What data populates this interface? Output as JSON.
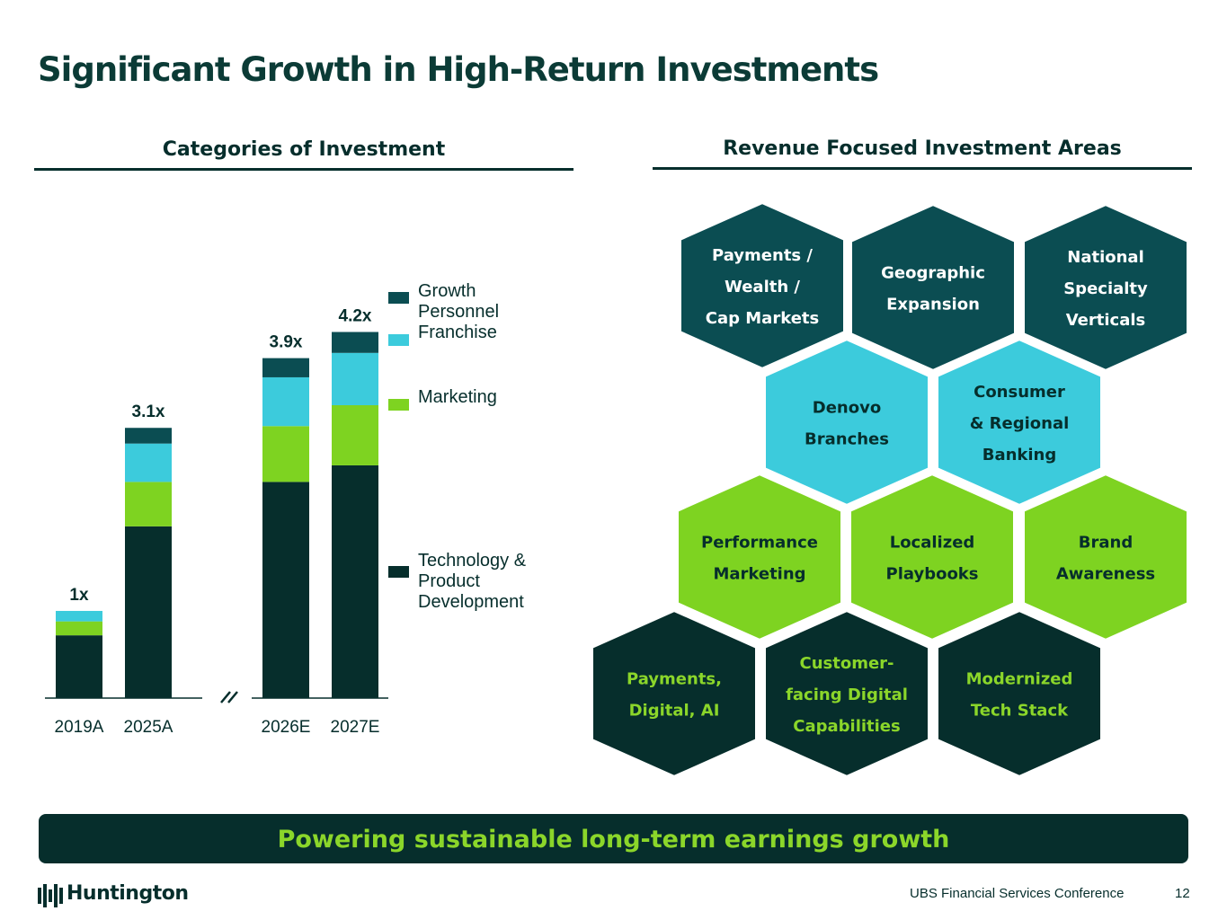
{
  "title": "Significant Growth in High-Return Investments",
  "left_heading": "Categories of Investment",
  "right_heading": "Revenue Focused Investment Areas",
  "chart_data": {
    "type": "stacked_bar",
    "categories": [
      "2019A",
      "2025A",
      "2026E",
      "2027E"
    ],
    "series": [
      {
        "name": "Technology & Product Development",
        "color": "#062e2c",
        "values": [
          0.72,
          1.97,
          2.48,
          2.67
        ]
      },
      {
        "name": "Marketing",
        "color": "#7ed321",
        "values": [
          0.16,
          0.51,
          0.64,
          0.69
        ]
      },
      {
        "name": "Franchise",
        "color": "#3ccbdc",
        "values": [
          0.12,
          0.44,
          0.56,
          0.6
        ]
      },
      {
        "name": "Growth Personnel",
        "color": "#0b4d52",
        "values": [
          0,
          0.18,
          0.22,
          0.24
        ]
      }
    ],
    "totals": [
      1,
      3.1,
      3.9,
      4.2
    ],
    "total_labels": [
      "1x",
      "3.1x",
      "3.9x",
      "4.2x"
    ],
    "ylim": [
      0,
      4.7
    ]
  },
  "hexagons": [
    {
      "lines": [
        "Payments /",
        "Wealth /",
        "Cap Markets"
      ],
      "color": "#0b4d52",
      "text_color": "#ffffff"
    },
    {
      "lines": [
        "Geographic",
        "Expansion"
      ],
      "color": "#0b4d52",
      "text_color": "#ffffff"
    },
    {
      "lines": [
        "National",
        "Specialty",
        "Verticals"
      ],
      "color": "#0b4d52",
      "text_color": "#ffffff"
    },
    {
      "lines": [
        "Denovo",
        "Branches"
      ],
      "color": "#3ccbdc",
      "text_color": "#062e2c"
    },
    {
      "lines": [
        "Consumer",
        "& Regional",
        "Banking"
      ],
      "color": "#3ccbdc",
      "text_color": "#062e2c"
    },
    {
      "lines": [
        "Performance",
        "Marketing"
      ],
      "color": "#7ed321",
      "text_color": "#062e2c"
    },
    {
      "lines": [
        "Localized",
        "Playbooks"
      ],
      "color": "#7ed321",
      "text_color": "#062e2c"
    },
    {
      "lines": [
        "Brand",
        "Awareness"
      ],
      "color": "#7ed321",
      "text_color": "#062e2c"
    },
    {
      "lines": [
        "Payments,",
        "Digital, AI"
      ],
      "color": "#062e2c",
      "text_color": "#8bd62a"
    },
    {
      "lines": [
        "Customer-",
        "facing Digital",
        "Capabilities"
      ],
      "color": "#062e2c",
      "text_color": "#8bd62a"
    },
    {
      "lines": [
        "Modernized",
        "Tech Stack"
      ],
      "color": "#062e2c",
      "text_color": "#8bd62a"
    }
  ],
  "banner": "Powering sustainable long-term earnings growth",
  "logo": "Huntington",
  "footer": "UBS Financial Services Conference",
  "page_number": "12"
}
